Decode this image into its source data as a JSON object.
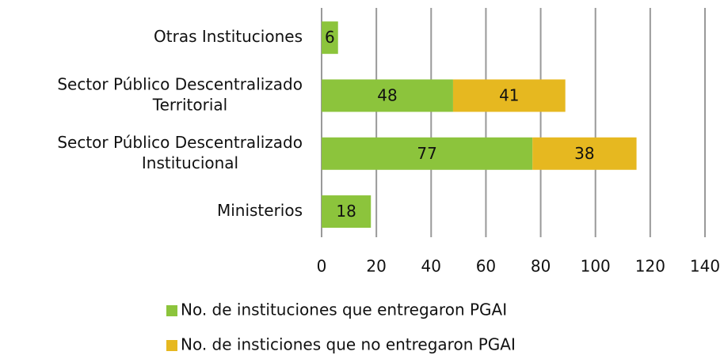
{
  "chart_data": {
    "type": "bar",
    "orientation": "horizontal",
    "stacked": true,
    "categories": [
      [
        "Otras Instituciones"
      ],
      [
        "Sector Público Descentralizado",
        "Territorial"
      ],
      [
        "Sector Público Descentralizado",
        "Institucional"
      ],
      [
        "Ministerios"
      ]
    ],
    "series": [
      {
        "name": "No. de instituciones que entregaron PGAI",
        "color": "#8cc43c",
        "values": [
          6,
          48,
          77,
          18
        ]
      },
      {
        "name": "No. de insticiones que no entregaron PGAI",
        "color": "#e6b820",
        "values": [
          null,
          41,
          38,
          null
        ]
      }
    ],
    "xlim": [
      0,
      140
    ],
    "xticks": [
      0,
      20,
      40,
      60,
      80,
      100,
      120,
      140
    ],
    "grid": true,
    "legend": "bottom"
  }
}
